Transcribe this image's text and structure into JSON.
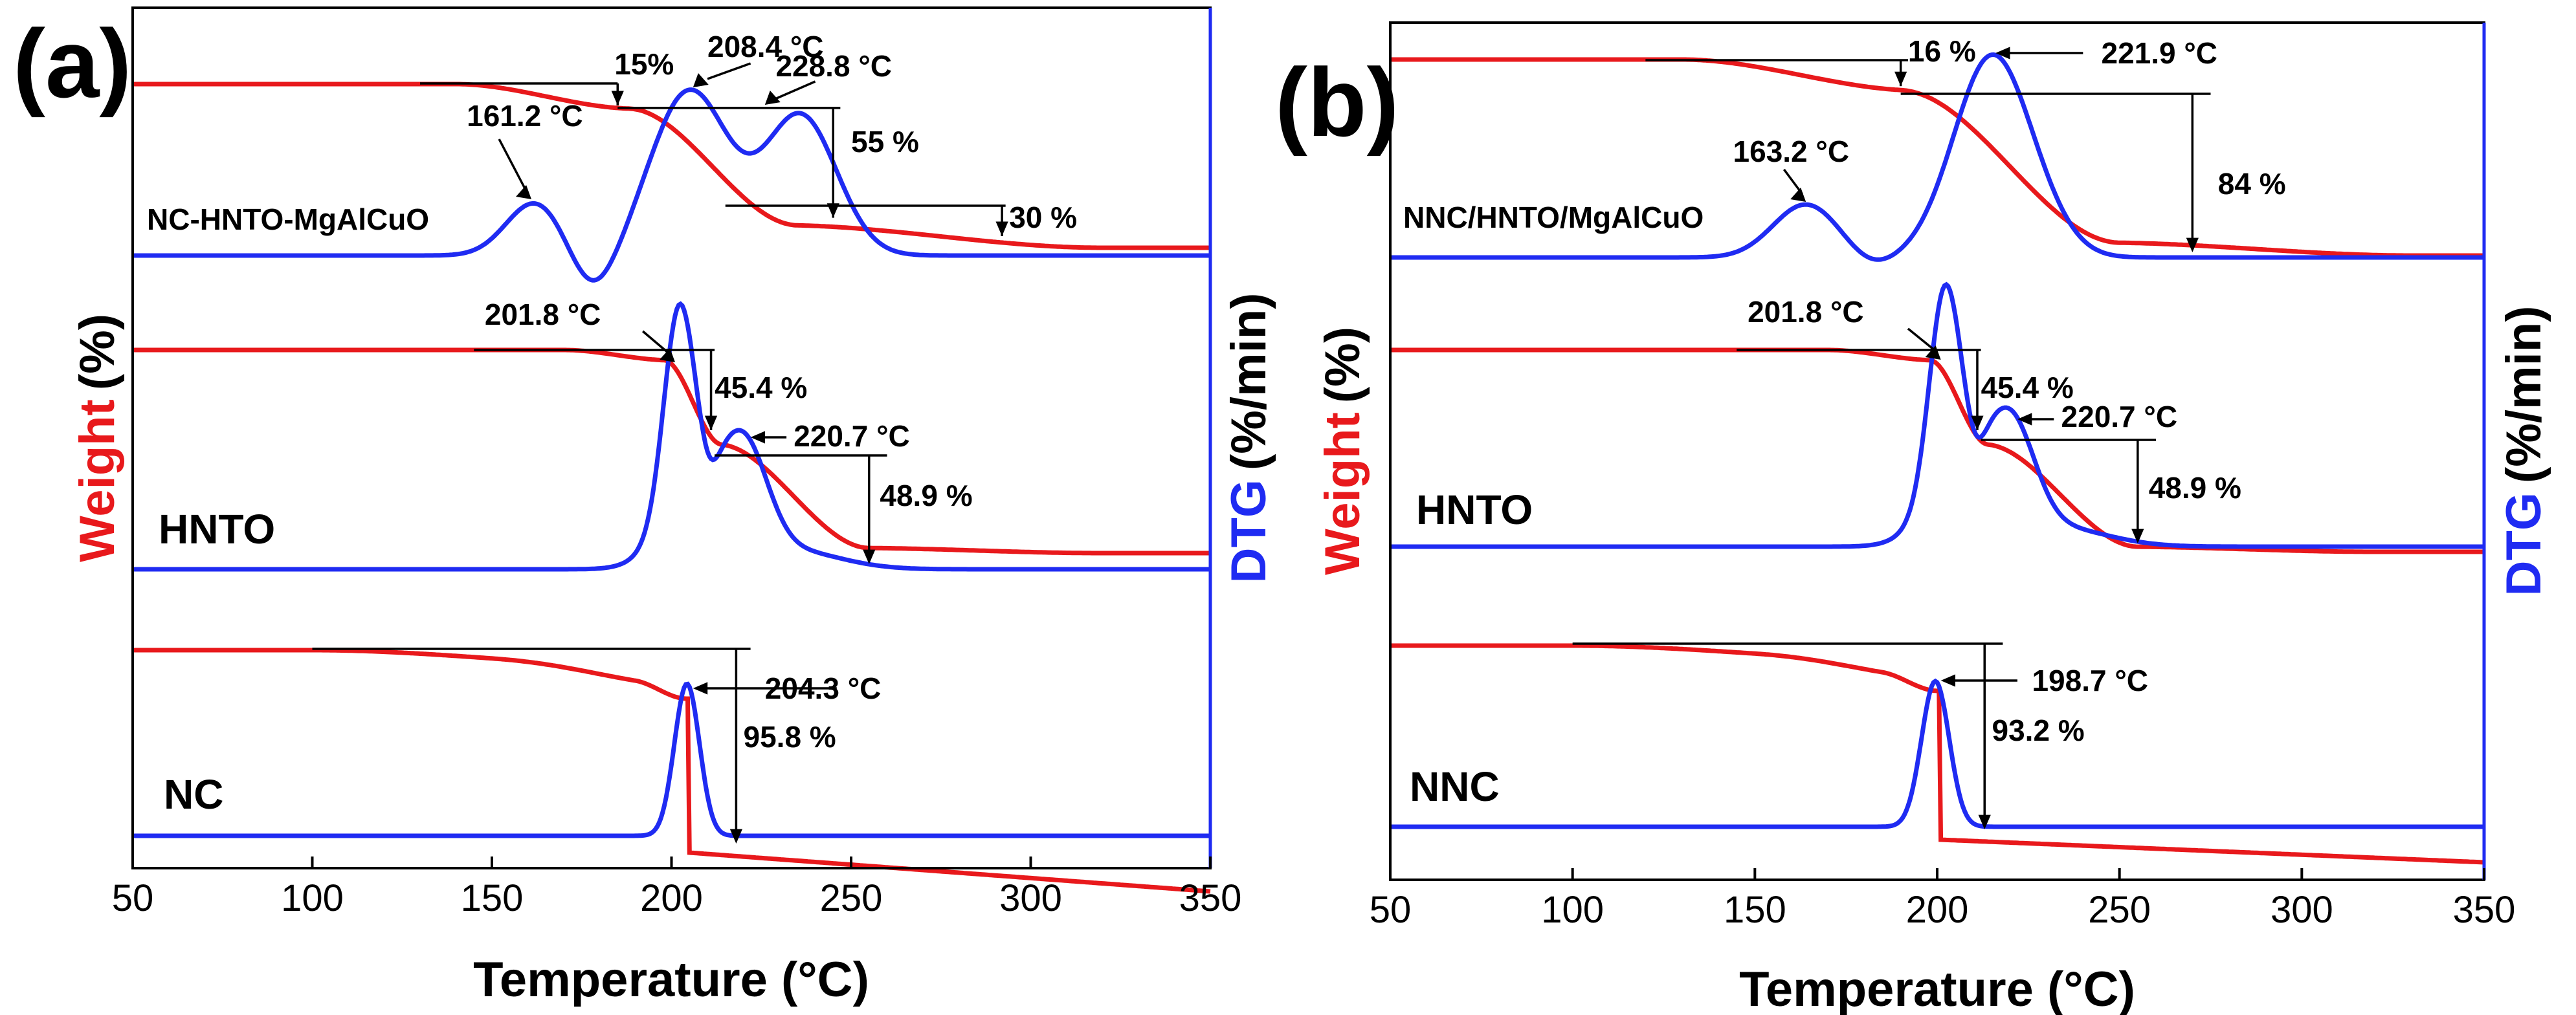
{
  "colors": {
    "weight": "#e8191c",
    "dtg": "#1f2bf2",
    "axis": "#000000",
    "dtg_axis": "#1f2bf2"
  },
  "chart_data": [
    {
      "type": "line",
      "panel": "(a)",
      "xlabel": "Temperature (°C)",
      "ylabel_left_word": "Weight",
      "ylabel_left_unit": "(%)",
      "ylabel_right_word": "DTG",
      "ylabel_right_unit": "(%/min)",
      "xlim": [
        50,
        350
      ],
      "xticks": [
        50,
        100,
        150,
        200,
        250,
        300,
        350
      ],
      "samples": [
        {
          "label": "NC-HNTO-MgAlCuO",
          "label_style": "small",
          "weight": {
            "start_temp": 130,
            "onset_temp": 130,
            "step1_temp": 185,
            "step1_loss": "15%",
            "step2_temp": 245,
            "step2_loss": "55 %",
            "step3_temp": 292,
            "step3_loss": "30 %",
            "end_temp": 350,
            "abrupt": false
          },
          "dtg_peaks": [
            {
              "temp": 161.2,
              "label": "161.2 °C",
              "height": 0.3
            },
            {
              "temp": 208.4,
              "label": "208.4 °C",
              "height": 1.0
            },
            {
              "temp": 228.8,
              "label": "228.8 °C",
              "height": 0.85
            }
          ]
        },
        {
          "label": "HNTO",
          "label_style": "large",
          "weight": {
            "onset_temp": 145,
            "step1_temp": 211,
            "step1_loss": "45.4 %",
            "step2_temp": 255,
            "step2_loss": "48.9 %"
          },
          "dtg_peaks": [
            {
              "temp": 201.8,
              "label": "201.8 °C",
              "height": 1.0
            },
            {
              "temp": 220.7,
              "label": "220.7 °C",
              "height": 0.62
            }
          ]
        },
        {
          "label": "NC",
          "label_style": "large",
          "weight": {
            "onset_temp": 100,
            "step_temp": 205,
            "loss": "95.8 %"
          },
          "dtg_peaks": [
            {
              "temp": 204.3,
              "label": "204.3 °C",
              "height": 1.0
            }
          ]
        }
      ]
    },
    {
      "type": "line",
      "panel": "(b)",
      "xlabel": "Temperature (°C)",
      "ylabel_left_word": "Weight",
      "ylabel_left_unit": "(%)",
      "ylabel_right_word": "DTG",
      "ylabel_right_unit": "(%/min)",
      "xlim": [
        50,
        350
      ],
      "xticks": [
        50,
        100,
        150,
        200,
        250,
        300,
        350
      ],
      "samples": [
        {
          "label": "NNC/HNTO/MgAlCuO",
          "label_style": "small",
          "weight": {
            "onset_temp": 120,
            "step1_temp": 190,
            "step1_loss": "16 %",
            "step2_temp": 270,
            "step2_loss": "84 %"
          },
          "dtg_peaks": [
            {
              "temp": 163.2,
              "label": "163.2 °C",
              "height": 0.35
            },
            {
              "temp": 221.9,
              "label": "221.9 °C",
              "height": 1.0
            }
          ]
        },
        {
          "label": "HNTO",
          "label_style": "large",
          "weight": {
            "onset_temp": 145,
            "step1_temp": 211,
            "step1_loss": "45.4 %",
            "step2_temp": 255,
            "step2_loss": "48.9 %"
          },
          "dtg_peaks": [
            {
              "temp": 201.8,
              "label": "201.8 °C",
              "height": 1.0
            },
            {
              "temp": 220.7,
              "label": "220.7 °C",
              "height": 0.62
            }
          ]
        },
        {
          "label": "NNC",
          "label_style": "large",
          "weight": {
            "onset_temp": 100,
            "step_temp": 201,
            "loss": "93.2 %"
          },
          "dtg_peaks": [
            {
              "temp": 198.7,
              "label": "198.7 °C",
              "height": 1.0
            }
          ]
        }
      ]
    }
  ]
}
